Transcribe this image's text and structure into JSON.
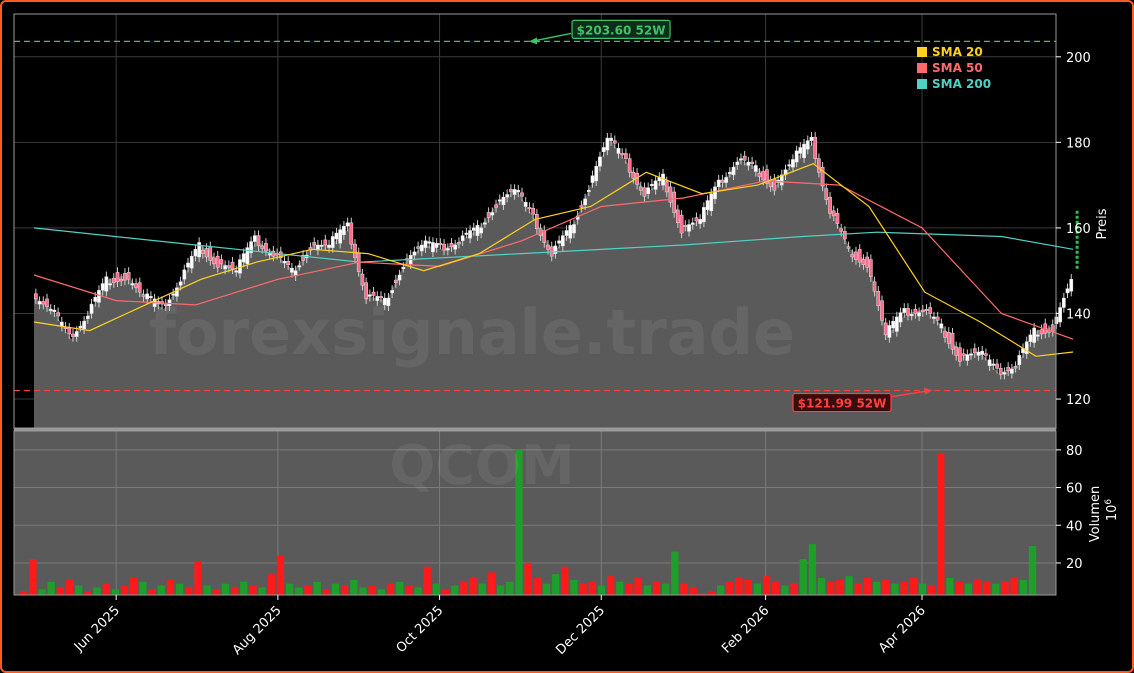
{
  "chart_data": {
    "type": "candlestick",
    "ticker": "QCOM",
    "watermark": "forexsignale.trade",
    "x_tick_labels": [
      "Jun 2025",
      "Aug 2025",
      "Oct 2025",
      "Dec 2025",
      "Feb 2026",
      "Apr 2026"
    ],
    "x_tick_dates": [
      "2025-06-01",
      "2025-08-01",
      "2025-10-01",
      "2025-12-01",
      "2026-02-01",
      "2026-04-01"
    ],
    "x_range": [
      "2025-05-01",
      "2026-05-14"
    ],
    "price_axis": {
      "label": "Preis",
      "ticks": [
        120,
        140,
        160,
        180,
        200
      ],
      "range": [
        113,
        210
      ]
    },
    "volume_axis": {
      "label": "Volumen",
      "multiplier": "10^6",
      "ticks": [
        20,
        40,
        60,
        80
      ],
      "range": [
        3,
        90
      ]
    },
    "annotations": {
      "high": {
        "label": "$203.60 52W",
        "value": 203.6,
        "date": "2025-11-03",
        "color": "#3ec26b"
      },
      "low": {
        "label": "$121.99 52W",
        "value": 121.99,
        "date": "2026-04-01",
        "color": "#ff4040"
      }
    },
    "legend": {
      "placement": "top-right",
      "items": [
        {
          "label": "SMA 20",
          "color": "#ffd21f"
        },
        {
          "label": "SMA 50",
          "color": "#ff6b6b"
        },
        {
          "label": "SMA 200",
          "color": "#4fd1c5"
        }
      ]
    },
    "close_series": [
      [
        "2025-05-01",
        144
      ],
      [
        "2025-05-08",
        141
      ],
      [
        "2025-05-15",
        134
      ],
      [
        "2025-05-22",
        140
      ],
      [
        "2025-05-29",
        148
      ],
      [
        "2025-06-05",
        149
      ],
      [
        "2025-06-12",
        144
      ],
      [
        "2025-06-19",
        141
      ],
      [
        "2025-06-26",
        148
      ],
      [
        "2025-07-03",
        156
      ],
      [
        "2025-07-10",
        152
      ],
      [
        "2025-07-17",
        150
      ],
      [
        "2025-07-24",
        157
      ],
      [
        "2025-07-31",
        154
      ],
      [
        "2025-08-07",
        150
      ],
      [
        "2025-08-14",
        156
      ],
      [
        "2025-08-21",
        156
      ],
      [
        "2025-08-28",
        160
      ],
      [
        "2025-09-04",
        144
      ],
      [
        "2025-09-11",
        143
      ],
      [
        "2025-09-18",
        152
      ],
      [
        "2025-09-25",
        156
      ],
      [
        "2025-10-02",
        155
      ],
      [
        "2025-10-09",
        157
      ],
      [
        "2025-10-16",
        160
      ],
      [
        "2025-10-23",
        166
      ],
      [
        "2025-10-30",
        169
      ],
      [
        "2025-11-06",
        162
      ],
      [
        "2025-11-13",
        154
      ],
      [
        "2025-11-20",
        160
      ],
      [
        "2025-11-27",
        170
      ],
      [
        "2025-12-04",
        181
      ],
      [
        "2025-12-11",
        175
      ],
      [
        "2025-12-18",
        168
      ],
      [
        "2025-12-25",
        172
      ],
      [
        "2026-01-01",
        160
      ],
      [
        "2026-01-08",
        162
      ],
      [
        "2026-01-15",
        170
      ],
      [
        "2026-01-22",
        176
      ],
      [
        "2026-01-29",
        174
      ],
      [
        "2026-02-05",
        170
      ],
      [
        "2026-02-12",
        176
      ],
      [
        "2026-02-19",
        180
      ],
      [
        "2026-02-26",
        164
      ],
      [
        "2026-03-05",
        155
      ],
      [
        "2026-03-12",
        152
      ],
      [
        "2026-03-19",
        135
      ],
      [
        "2026-03-26",
        140
      ],
      [
        "2026-04-02",
        141
      ],
      [
        "2026-04-09",
        137
      ],
      [
        "2026-04-16",
        130
      ],
      [
        "2026-04-23",
        131
      ],
      [
        "2026-04-30",
        126
      ],
      [
        "2026-05-07",
        128
      ],
      [
        "2026-05-14",
        136
      ],
      [
        "2026-05-21",
        137
      ],
      [
        "2026-05-28",
        148
      ]
    ],
    "sma20": [
      [
        "2025-05-01",
        138
      ],
      [
        "2025-05-22",
        136
      ],
      [
        "2025-06-12",
        142
      ],
      [
        "2025-07-03",
        148
      ],
      [
        "2025-07-24",
        152
      ],
      [
        "2025-08-14",
        155
      ],
      [
        "2025-09-04",
        154
      ],
      [
        "2025-09-25",
        150
      ],
      [
        "2025-10-16",
        154
      ],
      [
        "2025-11-06",
        162
      ],
      [
        "2025-11-27",
        165
      ],
      [
        "2025-12-18",
        173
      ],
      [
        "2026-01-08",
        168
      ],
      [
        "2026-01-29",
        170
      ],
      [
        "2026-02-19",
        175
      ],
      [
        "2026-03-12",
        165
      ],
      [
        "2026-04-02",
        145
      ],
      [
        "2026-04-23",
        138
      ],
      [
        "2026-05-14",
        130
      ],
      [
        "2026-05-28",
        131
      ]
    ],
    "sma50": [
      [
        "2025-05-01",
        149
      ],
      [
        "2025-06-01",
        143
      ],
      [
        "2025-07-01",
        142
      ],
      [
        "2025-08-01",
        148
      ],
      [
        "2025-09-01",
        152
      ],
      [
        "2025-10-01",
        151
      ],
      [
        "2025-11-01",
        157
      ],
      [
        "2025-12-01",
        165
      ],
      [
        "2026-01-01",
        167
      ],
      [
        "2026-02-01",
        171
      ],
      [
        "2026-03-01",
        170
      ],
      [
        "2026-04-01",
        160
      ],
      [
        "2026-05-01",
        140
      ],
      [
        "2026-05-28",
        134
      ]
    ],
    "sma200": [
      [
        "2025-05-01",
        160
      ],
      [
        "2025-07-01",
        156
      ],
      [
        "2025-09-01",
        152
      ],
      [
        "2025-11-01",
        154
      ],
      [
        "2026-01-01",
        156
      ],
      [
        "2026-02-15",
        158
      ],
      [
        "2026-03-15",
        159
      ],
      [
        "2026-05-01",
        158
      ],
      [
        "2026-05-28",
        155
      ]
    ],
    "volume_bars": [
      5,
      22,
      6,
      10,
      7,
      11,
      8,
      5,
      7,
      9,
      6,
      8,
      12,
      10,
      6,
      8,
      11,
      9,
      7,
      21,
      8,
      6,
      9,
      7,
      10,
      8,
      7,
      14,
      24,
      9,
      7,
      8,
      10,
      6,
      9,
      8,
      11,
      7,
      8,
      6,
      9,
      10,
      8,
      7,
      18,
      9,
      6,
      8,
      10,
      12,
      9,
      15,
      8,
      10,
      80,
      20,
      12,
      9,
      14,
      18,
      11,
      9,
      10,
      8,
      13,
      10,
      9,
      12,
      8,
      10,
      9,
      26,
      9,
      7,
      4,
      5,
      8,
      10,
      12,
      11,
      9,
      13,
      10,
      8,
      9,
      22,
      30,
      12,
      10,
      11,
      13,
      9,
      12,
      10,
      11,
      9,
      10,
      12,
      9,
      8,
      78,
      12,
      10,
      9,
      11,
      10,
      9,
      10,
      12,
      11,
      29
    ],
    "volume_up": [
      0,
      0,
      1,
      1,
      0,
      0,
      1,
      0,
      1,
      0,
      1,
      0,
      0,
      1,
      0,
      1,
      0,
      1,
      0,
      0,
      1,
      0,
      1,
      0,
      1,
      0,
      1,
      0,
      0,
      1,
      1,
      0,
      1,
      0,
      1,
      0,
      1,
      1,
      0,
      1,
      0,
      1,
      0,
      1,
      0,
      1,
      0,
      1,
      0,
      0,
      1,
      0,
      1,
      1,
      1,
      0,
      0,
      1,
      1,
      0,
      1,
      0,
      0,
      1,
      0,
      1,
      0,
      0,
      1,
      0,
      1,
      1,
      0,
      0,
      0,
      0,
      1,
      0,
      0,
      0,
      1,
      0,
      0,
      1,
      0,
      1,
      1,
      1,
      0,
      0,
      1,
      0,
      0,
      1,
      0,
      1,
      0,
      0,
      1,
      0,
      0,
      1,
      0,
      1,
      0,
      0,
      1,
      0,
      0,
      1,
      1
    ]
  }
}
